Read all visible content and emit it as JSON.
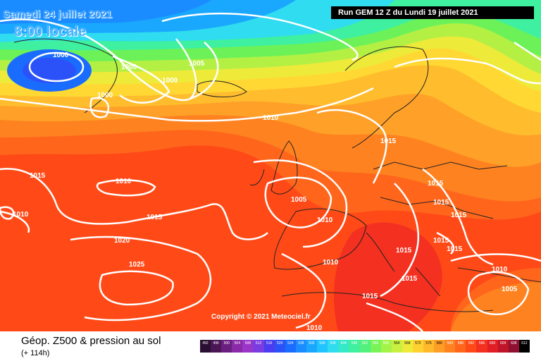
{
  "header": {
    "date": "Samedi 24 juillet 2021",
    "time": "8:00 locale",
    "run": "Run GEM 12 Z du Lundi 19 juillet 2021"
  },
  "copyright": "Copyright © 2021 Meteociel.fr",
  "footer": {
    "title": "Géop. Z500 & pression au sol",
    "subtitle": "(+ 114h)"
  },
  "isobar_labels": [
    "1000",
    "1000",
    "1000",
    "1000",
    "1005",
    "1005",
    "1005",
    "1010",
    "1010",
    "1010",
    "1010",
    "1010",
    "1010",
    "1010",
    "1015",
    "1015",
    "1015",
    "1015",
    "1015",
    "1015",
    "1015",
    "1015",
    "1015",
    "1015",
    "1015",
    "1020",
    "1025"
  ],
  "legend": {
    "values": [
      "492",
      "496",
      "500",
      "504",
      "508",
      "512",
      "516",
      "520",
      "524",
      "528",
      "532",
      "536",
      "540",
      "544",
      "548",
      "552",
      "556",
      "560",
      "564",
      "568",
      "572",
      "576",
      "580",
      "584",
      "588",
      "592",
      "596",
      "600",
      "604",
      "608",
      "612"
    ],
    "colors": [
      "#2a0f33",
      "#4a1656",
      "#6a1f80",
      "#8a2aa8",
      "#9a35c8",
      "#7a3ce0",
      "#4a3cf0",
      "#2a52f8",
      "#1a6cff",
      "#1a8cff",
      "#1aa8ff",
      "#22c4ff",
      "#30dcf0",
      "#34e8c8",
      "#3ef0a0",
      "#52f07c",
      "#78f458",
      "#a2f448",
      "#c8f040",
      "#eeea3a",
      "#ffd232",
      "#ffba2c",
      "#ff9e26",
      "#ff8220",
      "#ff661c",
      "#ff4a18",
      "#f43020",
      "#e01e24",
      "#c0142a",
      "#901030",
      "#000000"
    ]
  },
  "colors": {
    "isobar": "#ffffff",
    "header_text": "#3aa0ff",
    "run_bg": "#000000"
  }
}
